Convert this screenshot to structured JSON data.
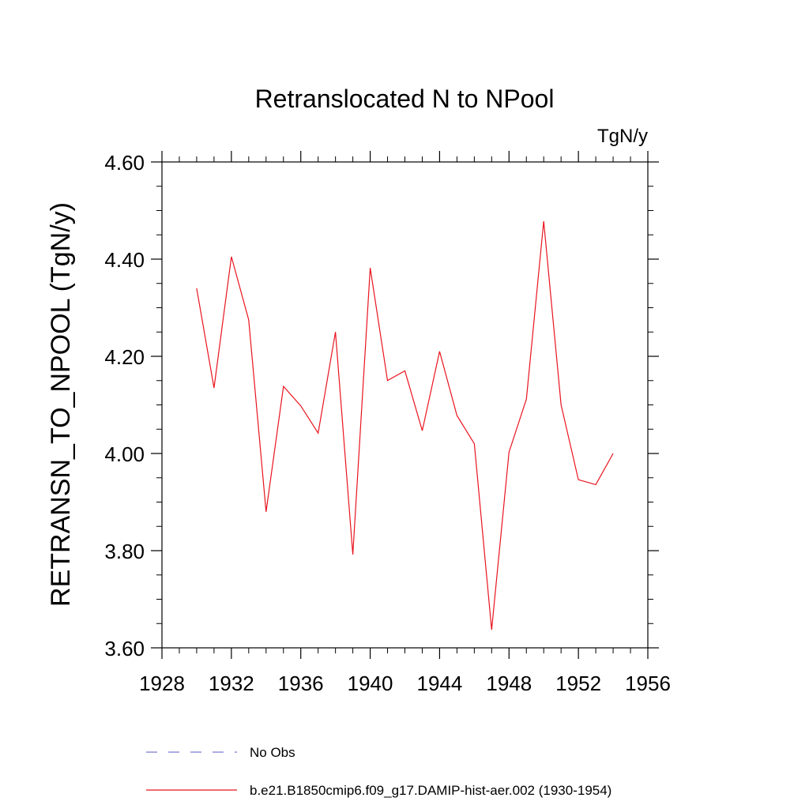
{
  "chart_data": {
    "type": "line",
    "title": "Retranslocated N to NPool",
    "units_label": "TgN/y",
    "ylabel": "RETRANSN_TO_NPOOL  (TgN/y)",
    "xlabel": "",
    "xlim": [
      1928,
      1956
    ],
    "ylim": [
      3.6,
      4.6
    ],
    "x_ticks": [
      1928,
      1932,
      1936,
      1940,
      1944,
      1948,
      1952,
      1956
    ],
    "x_tick_labels": [
      "1928",
      "1932",
      "1936",
      "1940",
      "1944",
      "1948",
      "1952",
      "1956"
    ],
    "y_ticks": [
      3.6,
      3.8,
      4.0,
      4.2,
      4.4,
      4.6
    ],
    "y_tick_labels": [
      "3.60",
      "3.80",
      "4.00",
      "4.20",
      "4.40",
      "4.60"
    ],
    "grid": false,
    "legend_position": "bottom",
    "series": [
      {
        "name": "No Obs",
        "color": "#7b7bd0",
        "style": "dashed",
        "x": [],
        "values": []
      },
      {
        "name": "b.e21.B1850cmip6.f09_g17.DAMIP-hist-aer.002 (1930-1954)",
        "color": "#e8141e",
        "style": "solid",
        "x": [
          1930,
          1931,
          1932,
          1933,
          1934,
          1935,
          1936,
          1937,
          1938,
          1939,
          1940,
          1941,
          1942,
          1943,
          1944,
          1945,
          1946,
          1947,
          1948,
          1949,
          1950,
          1951,
          1952,
          1953,
          1954
        ],
        "values": [
          4.34,
          4.135,
          4.405,
          4.275,
          3.88,
          4.138,
          4.098,
          4.042,
          4.25,
          3.792,
          4.382,
          4.15,
          4.17,
          4.047,
          4.21,
          4.078,
          4.02,
          3.637,
          4.003,
          4.112,
          4.478,
          4.1,
          3.946,
          3.936,
          4.0
        ]
      }
    ]
  }
}
